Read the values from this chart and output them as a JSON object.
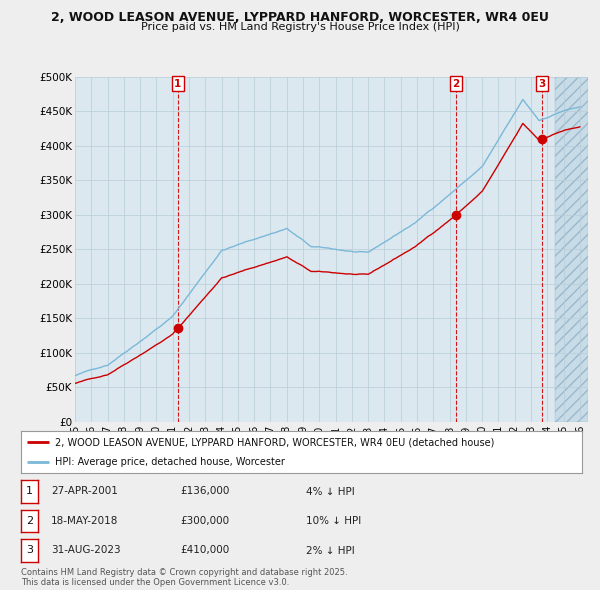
{
  "title_line1": "2, WOOD LEASON AVENUE, LYPPARD HANFORD, WORCESTER, WR4 0EU",
  "title_line2": "Price paid vs. HM Land Registry's House Price Index (HPI)",
  "ylim": [
    0,
    500000
  ],
  "yticks": [
    0,
    50000,
    100000,
    150000,
    200000,
    250000,
    300000,
    350000,
    400000,
    450000,
    500000
  ],
  "ytick_labels": [
    "£0",
    "£50K",
    "£100K",
    "£150K",
    "£200K",
    "£250K",
    "£300K",
    "£350K",
    "£400K",
    "£450K",
    "£500K"
  ],
  "xlim_start": 1995.0,
  "xlim_end": 2026.5,
  "xticks": [
    1995,
    1996,
    1997,
    1998,
    1999,
    2000,
    2001,
    2002,
    2003,
    2004,
    2005,
    2006,
    2007,
    2008,
    2009,
    2010,
    2011,
    2012,
    2013,
    2014,
    2015,
    2016,
    2017,
    2018,
    2019,
    2020,
    2021,
    2022,
    2023,
    2024,
    2025,
    2026
  ],
  "sale_dates": [
    2001.32,
    2018.38,
    2023.66
  ],
  "sale_prices": [
    136000,
    300000,
    410000
  ],
  "sale_labels": [
    "1",
    "2",
    "3"
  ],
  "hpi_line_color": "#7ab8d8",
  "price_line_color": "#cc0000",
  "vline_color": "#cc0000",
  "background_color": "#eeeeee",
  "plot_bg_color": "#dce8f0",
  "grid_color": "#b8cdd8",
  "future_start": 2024.5,
  "legend_line1": "2, WOOD LEASON AVENUE, LYPPARD HANFORD, WORCESTER, WR4 0EU (detached house)",
  "legend_line2": "HPI: Average price, detached house, Worcester",
  "table_entries": [
    {
      "label": "1",
      "date": "27-APR-2001",
      "price": "£136,000",
      "hpi": "4% ↓ HPI"
    },
    {
      "label": "2",
      "date": "18-MAY-2018",
      "price": "£300,000",
      "hpi": "10% ↓ HPI"
    },
    {
      "label": "3",
      "date": "31-AUG-2023",
      "price": "£410,000",
      "hpi": "2% ↓ HPI"
    }
  ],
  "footer": "Contains HM Land Registry data © Crown copyright and database right 2025.\nThis data is licensed under the Open Government Licence v3.0."
}
